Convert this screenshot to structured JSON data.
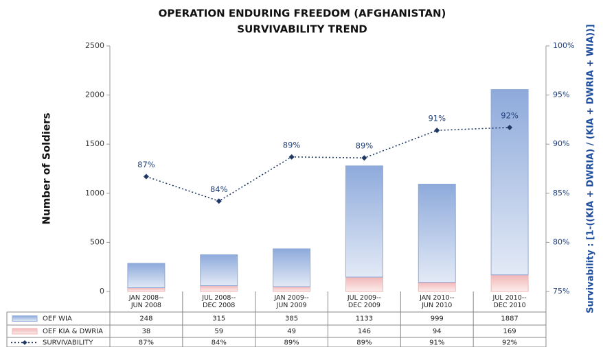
{
  "chart_data": {
    "type": "bar",
    "title": "OPERATION ENDURING FREEDOM (AFGHANISTAN)",
    "subtitle": "SURVIVABILITY TREND",
    "y_label": "Number of Soldiers",
    "y2_label": "Survivability : [1-((KIA + DWRIA) / (KIA + DWRIA + WIA))]",
    "categories": [
      "JAN 2008--\nJUN 2008",
      "JUL 2008--\nDEC 2008",
      "JAN 2009--\nJUN 2009",
      "JUL 2009--\nDEC 2009",
      "JAN 2010--\nJUN 2010",
      "JUL 2010--\nDEC 2010"
    ],
    "series": [
      {
        "name": "OEF WIA",
        "type": "bar",
        "color": "#8eaadb",
        "values": [
          248,
          315,
          385,
          1133,
          999,
          1887
        ]
      },
      {
        "name": "OEF KIA & DWRIA",
        "type": "bar",
        "color": "#f2b6b6",
        "values": [
          38,
          59,
          49,
          146,
          94,
          169
        ]
      },
      {
        "name": "SURVIVABILITY",
        "type": "line",
        "axis": "y2",
        "color": "#1f3864",
        "values": [
          86.7,
          84.2,
          88.7,
          88.6,
          91.4,
          91.7
        ],
        "value_labels": [
          "87%",
          "84%",
          "89%",
          "89%",
          "91%",
          "92%"
        ]
      }
    ],
    "ylim": [
      0,
      2500
    ],
    "yticks": [
      0,
      500,
      1000,
      1500,
      2000,
      2500
    ],
    "y2lim": [
      75,
      100
    ],
    "y2ticks": [
      {
        "value": 75,
        "label": "75%"
      },
      {
        "value": 80,
        "label": "80%"
      },
      {
        "value": 85,
        "label": "85%"
      },
      {
        "value": 90,
        "label": "90%"
      },
      {
        "value": 95,
        "label": "95%"
      },
      {
        "value": 100,
        "label": "100%"
      }
    ]
  }
}
